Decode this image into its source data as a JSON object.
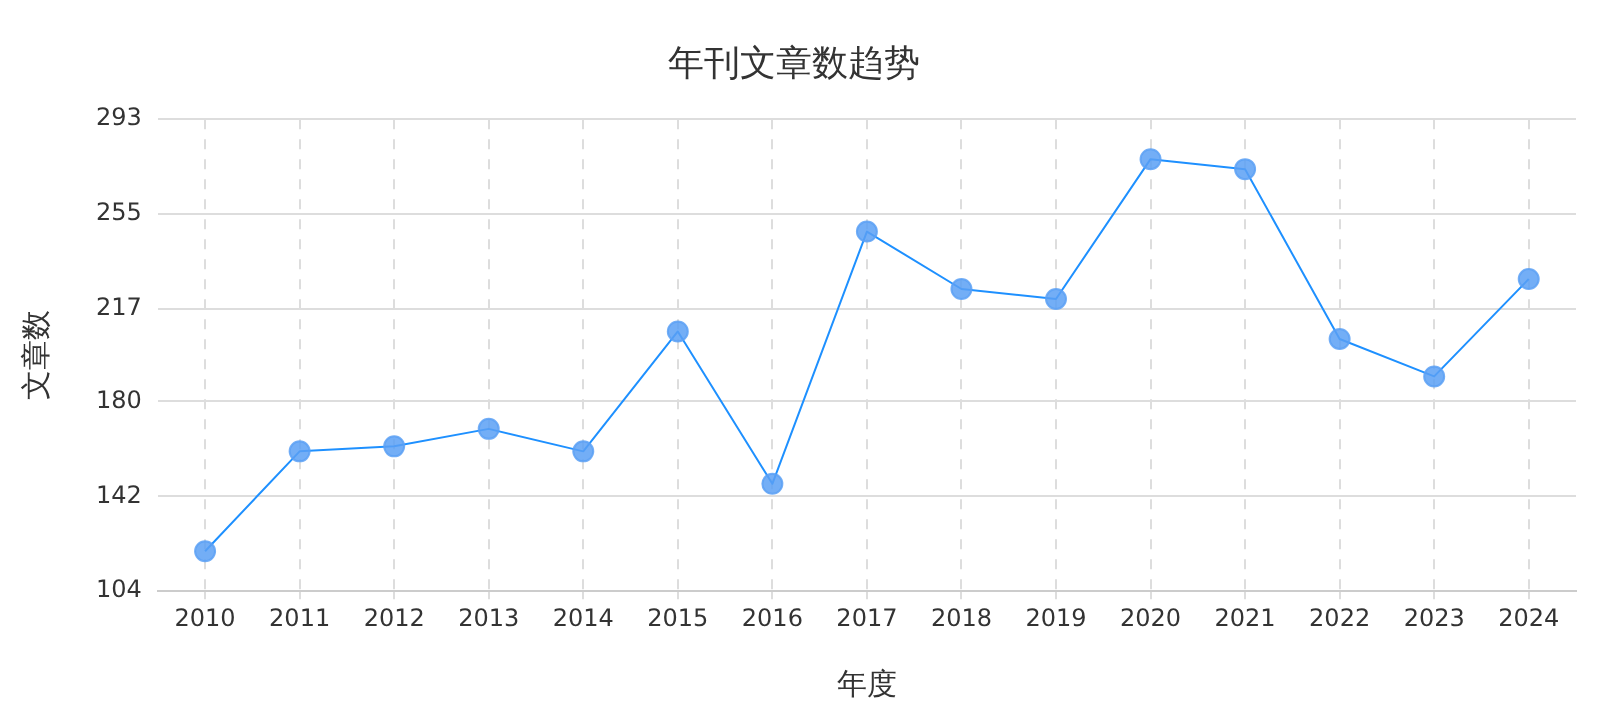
{
  "chart_data": {
    "type": "line",
    "title": "年刊文章数趋势",
    "xlabel": "年度",
    "ylabel": "文章数",
    "categories": [
      "2010",
      "2011",
      "2012",
      "2013",
      "2014",
      "2015",
      "2016",
      "2017",
      "2018",
      "2019",
      "2020",
      "2021",
      "2022",
      "2023",
      "2024"
    ],
    "series": [
      {
        "color": "#1e90ff",
        "values": [
          120,
          160,
          162,
          169,
          160,
          208,
          147,
          248,
          225,
          221,
          277,
          273,
          205,
          190,
          229
        ]
      }
    ],
    "ylim": [
      104,
      293
    ],
    "yticks": [
      104,
      142,
      180,
      217,
      255,
      293
    ],
    "grid": true,
    "legend": false,
    "marker": "circle",
    "line_style": "solid"
  }
}
